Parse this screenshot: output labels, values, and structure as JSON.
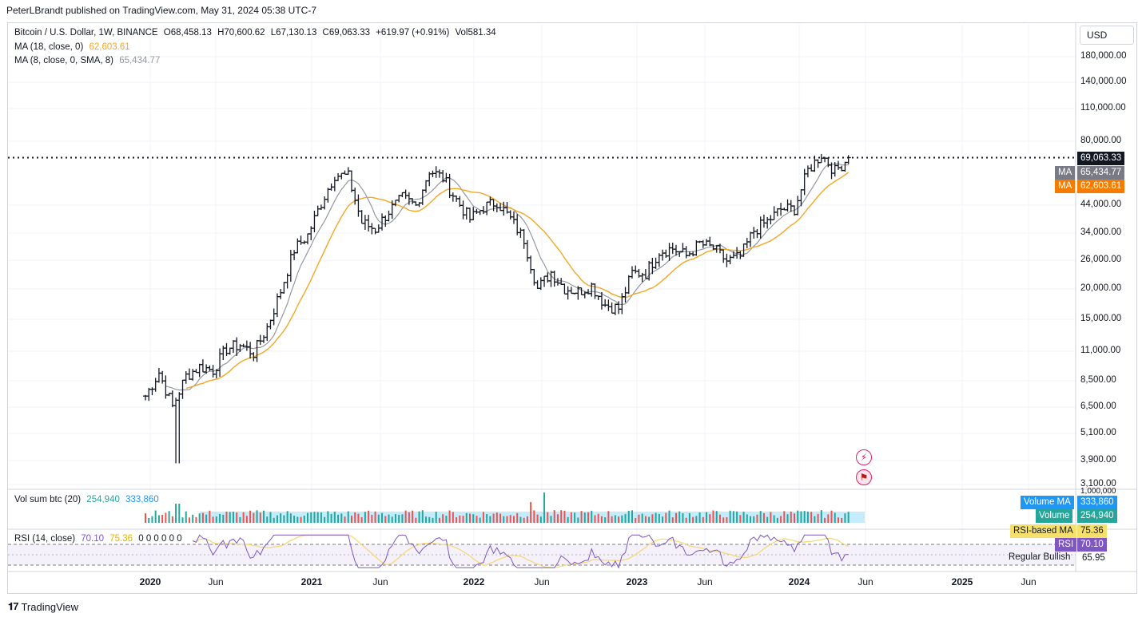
{
  "publisher": "PeterLBrandt published on TradingView.com, May 31, 2024 05:38 UTC-7",
  "legend": {
    "symbol": "Bitcoin / U.S. Dollar, 1W, BINANCE",
    "open": "O68,458.13",
    "high": "H70,600.62",
    "low": "L67,130.13",
    "close": "C69,063.33",
    "change": "+619.97 (+0.91%)",
    "vol": "Vol581.34",
    "ma18_label": "MA (18, close, 0)",
    "ma18_value": "62,603.61",
    "ma8_label": "MA (8, close, 0, SMA, 8)",
    "ma8_value": "65,434.77",
    "vol_label": "Vol sum btc (20)",
    "vol_value": "254,940",
    "vol_ma_value": "333,860",
    "rsi_label": "RSI (14, close)",
    "rsi_value": "70.10",
    "rsi_ma_value": "75.36",
    "rsi_zeros": "0 0 0 0 0 0"
  },
  "currency": "USD",
  "price_axis": [
    "180,000.00",
    "140,000.00",
    "110,000.00",
    "80,000.00",
    "44,000.00",
    "34,000.00",
    "26,000.00",
    "20,000.00",
    "15,000.00",
    "11,000.00",
    "8,500.00",
    "6,500.00",
    "5,100.00",
    "3,900.00",
    "3,100.00",
    "1,000,000"
  ],
  "time_axis": [
    {
      "label": "2020",
      "bold": true
    },
    {
      "label": "Jun",
      "bold": false
    },
    {
      "label": "2021",
      "bold": true
    },
    {
      "label": "Jun",
      "bold": false
    },
    {
      "label": "2022",
      "bold": true
    },
    {
      "label": "Jun",
      "bold": false
    },
    {
      "label": "2023",
      "bold": true
    },
    {
      "label": "Jun",
      "bold": false
    },
    {
      "label": "2024",
      "bold": true
    },
    {
      "label": "Jun",
      "bold": false
    },
    {
      "label": "2025",
      "bold": true
    },
    {
      "label": "Jun",
      "bold": false
    }
  ],
  "badges": {
    "last_price": "69,063.33",
    "ma_label": "MA",
    "ma8": "65,434.77",
    "ma18": "62,603.61",
    "volume_ma_label": "Volume MA",
    "volume_ma": "333,860",
    "volume_label": "Volume",
    "volume": "254,940",
    "rsi_ma_label": "RSI-based MA",
    "rsi_ma": "75.36",
    "rsi_label": "RSI",
    "rsi": "70.10",
    "bullish_label": "Regular Bullish",
    "bullish_value": "65.95"
  },
  "footer": "TradingView",
  "colors": {
    "candle": "#131722",
    "ma18": "#f5a623",
    "ma8": "#9598a1",
    "vol_up": "#26a69a",
    "vol_down": "#ef5350",
    "vol_ma": "#5ac8f5",
    "rsi": "#7e57c2",
    "rsi_ma": "#f5d76e",
    "last_price_bg": "#131722",
    "ma8_bg": "#787b86",
    "ma18_bg": "#f57c00"
  },
  "chart_data": {
    "type": "ohlc",
    "title": "Bitcoin / U.S. Dollar, 1W, BINANCE",
    "y_scale": "log",
    "ylim": [
      3100,
      180000
    ],
    "x": [
      "2020-01",
      "2020-02",
      "2020-03",
      "2020-04",
      "2020-05",
      "2020-06",
      "2020-07",
      "2020-08",
      "2020-09",
      "2020-10",
      "2020-11",
      "2020-12",
      "2021-01",
      "2021-02",
      "2021-03",
      "2021-04",
      "2021-05",
      "2021-06",
      "2021-07",
      "2021-08",
      "2021-09",
      "2021-10",
      "2021-11",
      "2021-12",
      "2022-01",
      "2022-02",
      "2022-03",
      "2022-04",
      "2022-05",
      "2022-06",
      "2022-07",
      "2022-08",
      "2022-09",
      "2022-10",
      "2022-11",
      "2022-12",
      "2023-01",
      "2023-02",
      "2023-03",
      "2023-04",
      "2023-05",
      "2023-06",
      "2023-07",
      "2023-08",
      "2023-09",
      "2023-10",
      "2023-11",
      "2023-12",
      "2024-01",
      "2024-02",
      "2024-03",
      "2024-04",
      "2024-05"
    ],
    "close": [
      7200,
      9000,
      6500,
      8700,
      9500,
      9200,
      11300,
      11700,
      10800,
      13800,
      19500,
      28900,
      33100,
      45000,
      58800,
      57700,
      37300,
      35000,
      41500,
      47100,
      43800,
      61300,
      57000,
      46300,
      38500,
      43200,
      45500,
      38600,
      31800,
      19900,
      23300,
      20000,
      19400,
      20500,
      17100,
      16500,
      23100,
      23100,
      28400,
      29200,
      27200,
      30500,
      29200,
      25900,
      27000,
      34600,
      37700,
      42300,
      42600,
      61200,
      71300,
      60700,
      69063
    ],
    "ma18_last": 62603.61,
    "ma8_last": 65434.77,
    "last_price": 69063.33,
    "volume": {
      "name": "Vol sum btc (20)",
      "last": 254940,
      "ma": 333860
    },
    "rsi": {
      "name": "RSI (14, close)",
      "last": 70.1,
      "ma": 75.36,
      "regular_bullish": 65.95
    }
  }
}
